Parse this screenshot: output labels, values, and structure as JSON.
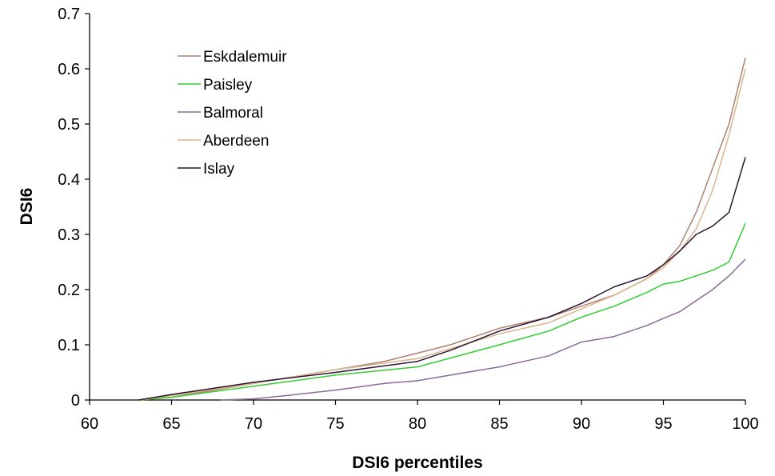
{
  "chart_data": {
    "type": "line",
    "xlabel": "DSI6 percentiles",
    "ylabel": "DSI6",
    "xlim": [
      60,
      100
    ],
    "ylim": [
      0,
      0.7
    ],
    "x_ticks": [
      "60",
      "65",
      "70",
      "75",
      "80",
      "85",
      "90",
      "95",
      "100"
    ],
    "y_ticks": [
      "0",
      "0.1",
      "0.2",
      "0.3",
      "0.4",
      "0.5",
      "0.6",
      "0.7"
    ],
    "grid": false,
    "legend_position": "top-left",
    "series": [
      {
        "name": "Eskdalemuir",
        "color": "#b08070",
        "x": [
          63,
          65,
          70,
          75,
          78,
          80,
          82,
          85,
          88,
          90,
          92,
          94,
          95,
          96,
          97,
          98,
          99,
          100
        ],
        "y": [
          0,
          0.005,
          0.03,
          0.055,
          0.07,
          0.085,
          0.1,
          0.13,
          0.15,
          0.17,
          0.19,
          0.22,
          0.245,
          0.28,
          0.34,
          0.42,
          0.5,
          0.62
        ]
      },
      {
        "name": "Paisley",
        "color": "#33cc33",
        "x": [
          63,
          65,
          70,
          75,
          80,
          85,
          88,
          90,
          92,
          94,
          95,
          96,
          97,
          98,
          99,
          100
        ],
        "y": [
          0,
          0.005,
          0.025,
          0.045,
          0.06,
          0.1,
          0.125,
          0.15,
          0.17,
          0.195,
          0.21,
          0.215,
          0.225,
          0.235,
          0.25,
          0.32
        ]
      },
      {
        "name": "Balmoral",
        "color": "#8a6a9a",
        "x": [
          68,
          70,
          72,
          75,
          78,
          80,
          82,
          85,
          88,
          90,
          92,
          94,
          95,
          96,
          97,
          98,
          99,
          100
        ],
        "y": [
          0,
          0.002,
          0.008,
          0.018,
          0.03,
          0.035,
          0.045,
          0.06,
          0.08,
          0.105,
          0.115,
          0.135,
          0.148,
          0.16,
          0.18,
          0.2,
          0.225,
          0.255
        ]
      },
      {
        "name": "Aberdeen",
        "color": "#d9b48c",
        "x": [
          63,
          65,
          70,
          75,
          80,
          85,
          88,
          90,
          92,
          94,
          95,
          96,
          97,
          98,
          99,
          100
        ],
        "y": [
          0,
          0.008,
          0.03,
          0.055,
          0.075,
          0.12,
          0.14,
          0.165,
          0.19,
          0.22,
          0.24,
          0.27,
          0.31,
          0.38,
          0.48,
          0.6
        ]
      },
      {
        "name": "Islay",
        "color": "#2b1530",
        "x": [
          63,
          65,
          70,
          75,
          80,
          82,
          85,
          88,
          90,
          92,
          94,
          95,
          96,
          97,
          98,
          99,
          100
        ],
        "y": [
          0,
          0.01,
          0.032,
          0.05,
          0.07,
          0.09,
          0.125,
          0.15,
          0.175,
          0.205,
          0.225,
          0.245,
          0.27,
          0.3,
          0.315,
          0.34,
          0.44
        ]
      }
    ]
  }
}
